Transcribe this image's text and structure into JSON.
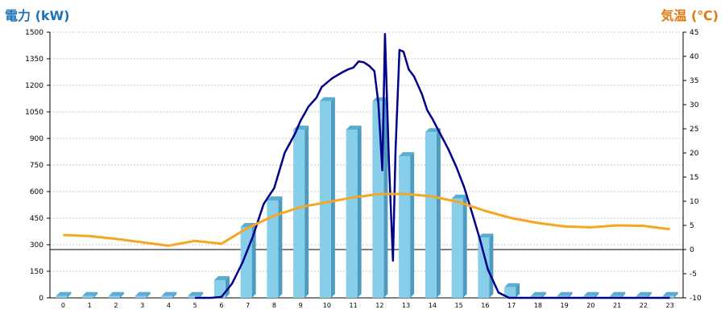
{
  "colors": {
    "power_title": "#1D73B5",
    "temp_title": "#E07A10",
    "bar_face": "#87CEEB",
    "bar_side": "#4C9CC0",
    "bar_top": "#5AAED1",
    "power_line": "#00008B",
    "temp_line": "#F5A623",
    "grid": "#C8C8C8"
  },
  "chart_data": {
    "type": "bar",
    "title": "",
    "y_left_label": "電力 (kW)",
    "y_right_label": "気温 (℃)",
    "ylim_left": [
      0,
      1500
    ],
    "ylim_right": [
      -10,
      45
    ],
    "grid": true,
    "categories": [
      "0",
      "1",
      "2",
      "3",
      "4",
      "5",
      "6",
      "7",
      "8",
      "9",
      "10",
      "11",
      "12",
      "13",
      "14",
      "15",
      "16",
      "17",
      "18",
      "19",
      "20",
      "21",
      "22",
      "23"
    ],
    "y_left_ticks": [
      "0",
      "150",
      "300",
      "450",
      "600",
      "750",
      "900",
      "1050",
      "1200",
      "1350",
      "1500"
    ],
    "y_right_ticks": [
      "-10",
      "-5",
      "0",
      "5",
      "10",
      "15",
      "20",
      "25",
      "30",
      "35",
      "40",
      "45"
    ],
    "series": [
      {
        "kind": "bar",
        "values": [
          10,
          10,
          10,
          10,
          10,
          10,
          100,
          400,
          550,
          950,
          1110,
          950,
          1110,
          800,
          935,
          560,
          340,
          60,
          10,
          10,
          10,
          10,
          10,
          10
        ]
      },
      {
        "kind": "line",
        "x": [
          5.0,
          5.6,
          6.0,
          6.4,
          6.8,
          7.2,
          7.6,
          8.0,
          8.4,
          8.8,
          9.0,
          9.3,
          9.6,
          9.8,
          10.2,
          10.6,
          10.8,
          11.0,
          11.2,
          11.4,
          11.6,
          11.8,
          11.95,
          12.1,
          12.2,
          12.35,
          12.5,
          12.6,
          12.75,
          12.9,
          13.1,
          13.3,
          13.6,
          13.8,
          14.0,
          14.3,
          14.6,
          14.9,
          15.2,
          15.5,
          15.8,
          16.1,
          16.5,
          16.9,
          17.2,
          17.6,
          18.0,
          19,
          20,
          21,
          22,
          23
        ],
        "values": [
          0,
          0,
          5,
          80,
          200,
          350,
          530,
          620,
          820,
          930,
          1000,
          1080,
          1130,
          1190,
          1240,
          1275,
          1290,
          1300,
          1335,
          1330,
          1310,
          1280,
          1100,
          720,
          1490,
          770,
          210,
          830,
          1400,
          1390,
          1290,
          1250,
          1150,
          1060,
          1010,
          925,
          840,
          740,
          625,
          480,
          330,
          160,
          30,
          0,
          0,
          0,
          0,
          0,
          0,
          0,
          0,
          0
        ]
      },
      {
        "kind": "line",
        "axis": "right",
        "x": [
          0,
          1,
          2,
          3,
          4,
          5,
          6,
          7,
          8,
          9,
          10,
          11,
          12,
          13,
          14,
          15,
          16,
          17,
          18,
          19,
          20,
          21,
          22,
          23
        ],
        "values": [
          3,
          2.8,
          2.2,
          1.5,
          0.8,
          1.8,
          1.2,
          4.5,
          7,
          8.8,
          9.8,
          10.8,
          11.5,
          11.5,
          11.0,
          9.8,
          8.0,
          6.5,
          5.5,
          4.8,
          4.6,
          5.0,
          4.9,
          4.2
        ]
      }
    ]
  }
}
